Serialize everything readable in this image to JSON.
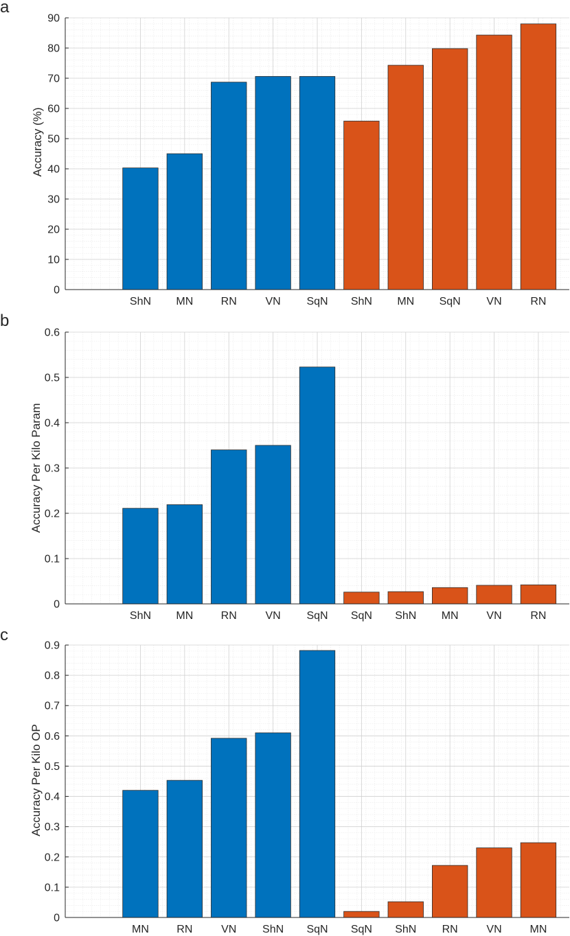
{
  "chart_data": [
    {
      "panel_label": "a",
      "type": "bar",
      "categories": [
        "ShN",
        "MN",
        "RN",
        "VN",
        "SqN",
        "ShN",
        "MN",
        "SqN",
        "VN",
        "RN"
      ],
      "values": [
        40.3,
        45.0,
        68.7,
        70.6,
        70.6,
        55.8,
        74.3,
        79.8,
        84.3,
        88.0
      ],
      "colors": [
        "#0072BD",
        "#0072BD",
        "#0072BD",
        "#0072BD",
        "#0072BD",
        "#D95319",
        "#D95319",
        "#D95319",
        "#D95319",
        "#D95319"
      ],
      "ylabel": "Accuracy (%)",
      "ylim": [
        0,
        90
      ],
      "yticks": [
        0,
        10,
        20,
        30,
        40,
        50,
        60,
        70,
        80,
        90
      ],
      "ytick_labels": [
        "0",
        "10",
        "20",
        "30",
        "40",
        "50",
        "60",
        "70",
        "80",
        "90"
      ],
      "y_minor_step": 2,
      "grid": true,
      "minor_grid": true
    },
    {
      "panel_label": "b",
      "type": "bar",
      "categories": [
        "ShN",
        "MN",
        "RN",
        "VN",
        "SqN",
        "SqN",
        "ShN",
        "MN",
        "VN",
        "RN"
      ],
      "values": [
        0.211,
        0.219,
        0.34,
        0.35,
        0.523,
        0.026,
        0.027,
        0.036,
        0.041,
        0.042
      ],
      "colors": [
        "#0072BD",
        "#0072BD",
        "#0072BD",
        "#0072BD",
        "#0072BD",
        "#D95319",
        "#D95319",
        "#D95319",
        "#D95319",
        "#D95319"
      ],
      "ylabel": "Accuracy Per Kilo Param",
      "ylim": [
        0,
        0.6
      ],
      "yticks": [
        0,
        0.1,
        0.2,
        0.3,
        0.4,
        0.5,
        0.6
      ],
      "ytick_labels": [
        "0",
        "0.1",
        "0.2",
        "0.3",
        "0.4",
        "0.5",
        "0.6"
      ],
      "y_minor_step": 0.02,
      "grid": true,
      "minor_grid": true
    },
    {
      "panel_label": "c",
      "type": "bar",
      "categories": [
        "MN",
        "RN",
        "VN",
        "ShN",
        "SqN",
        "SqN",
        "ShN",
        "RN",
        "VN",
        "MN"
      ],
      "values": [
        0.42,
        0.453,
        0.592,
        0.61,
        0.882,
        0.02,
        0.052,
        0.172,
        0.23,
        0.247
      ],
      "colors": [
        "#0072BD",
        "#0072BD",
        "#0072BD",
        "#0072BD",
        "#0072BD",
        "#D95319",
        "#D95319",
        "#D95319",
        "#D95319",
        "#D95319"
      ],
      "ylabel": "Accuracy Per Kilo OP",
      "ylim": [
        0,
        0.9
      ],
      "yticks": [
        0,
        0.1,
        0.2,
        0.3,
        0.4,
        0.5,
        0.6,
        0.7,
        0.8,
        0.9
      ],
      "ytick_labels": [
        "0",
        "0.1",
        "0.2",
        "0.3",
        "0.4",
        "0.5",
        "0.6",
        "0.7",
        "0.8",
        "0.9"
      ],
      "y_minor_step": 0.02,
      "grid": true,
      "minor_grid": true
    }
  ]
}
